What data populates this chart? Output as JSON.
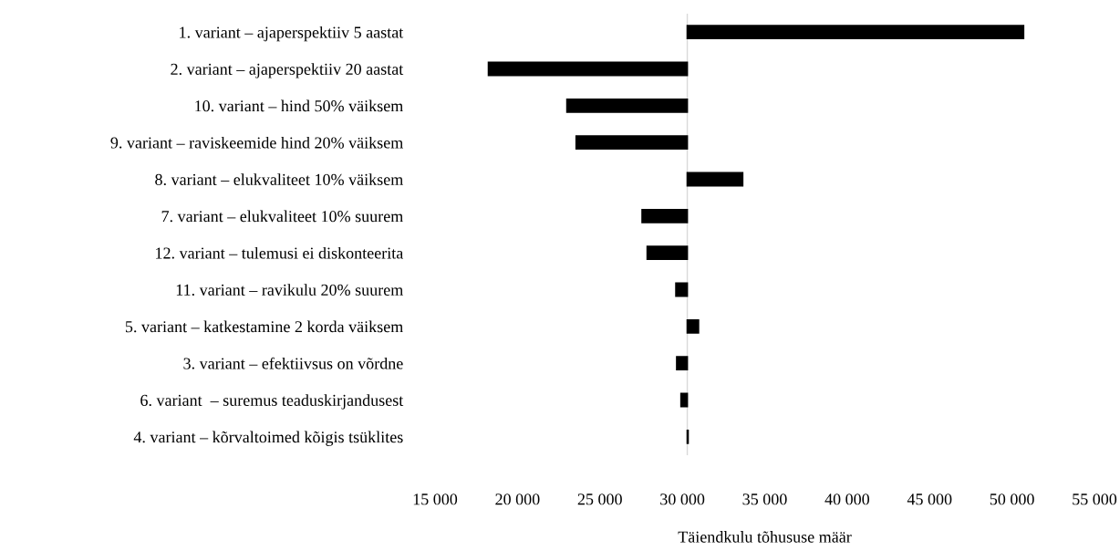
{
  "chart_data": {
    "type": "bar",
    "orientation": "horizontal",
    "xlabel": "Täiendkulu tõhususe määr",
    "categories": [
      "1. variant – ajaperspektiiv 5 aastat",
      "2. variant – ajaperspektiiv 20 aastat",
      "10. variant – hind 50% väiksem",
      "9. variant – raviskeemide hind 20% väiksem",
      "8. variant – elukvaliteet 10% väiksem",
      "7. variant – elukvaliteet 10% suurem",
      "12. variant – tulemusi ei diskonteerita",
      "11. variant – ravikulu 20% suurem",
      "5. variant – katkestamine 2 korda väiksem",
      "3. variant – efektiivsus on võrdne",
      "6. variant  – suremus teaduskirjandusest",
      "4. variant – kõrvaltoimed kõigis tsüklites"
    ],
    "values": [
      20400,
      -12060,
      -7300,
      -6740,
      3360,
      -2740,
      -2430,
      -690,
      680,
      -640,
      -380,
      50
    ],
    "base": [
      30300,
      30300,
      30300,
      30300,
      30300,
      30300,
      30300,
      30300,
      30300,
      30300,
      30300,
      30300
    ],
    "color": "#000000",
    "xlim": [
      15000,
      55000
    ],
    "xticks": [
      {
        "value": 15000,
        "label": "15 000"
      },
      {
        "value": 20000,
        "label": "20 000"
      },
      {
        "value": 25000,
        "label": "25 000"
      },
      {
        "value": 30000,
        "label": "30 000"
      },
      {
        "value": 35000,
        "label": "35 000"
      },
      {
        "value": 40000,
        "label": "40 000"
      },
      {
        "value": 45000,
        "label": "45 000"
      },
      {
        "value": 50000,
        "label": "50 000"
      },
      {
        "value": 55000,
        "label": "55 000"
      }
    ],
    "ref_lines": [
      {
        "axis": "x",
        "value": 30300,
        "color": "#d9d9d9"
      }
    ],
    "grid": false,
    "legend": false
  }
}
